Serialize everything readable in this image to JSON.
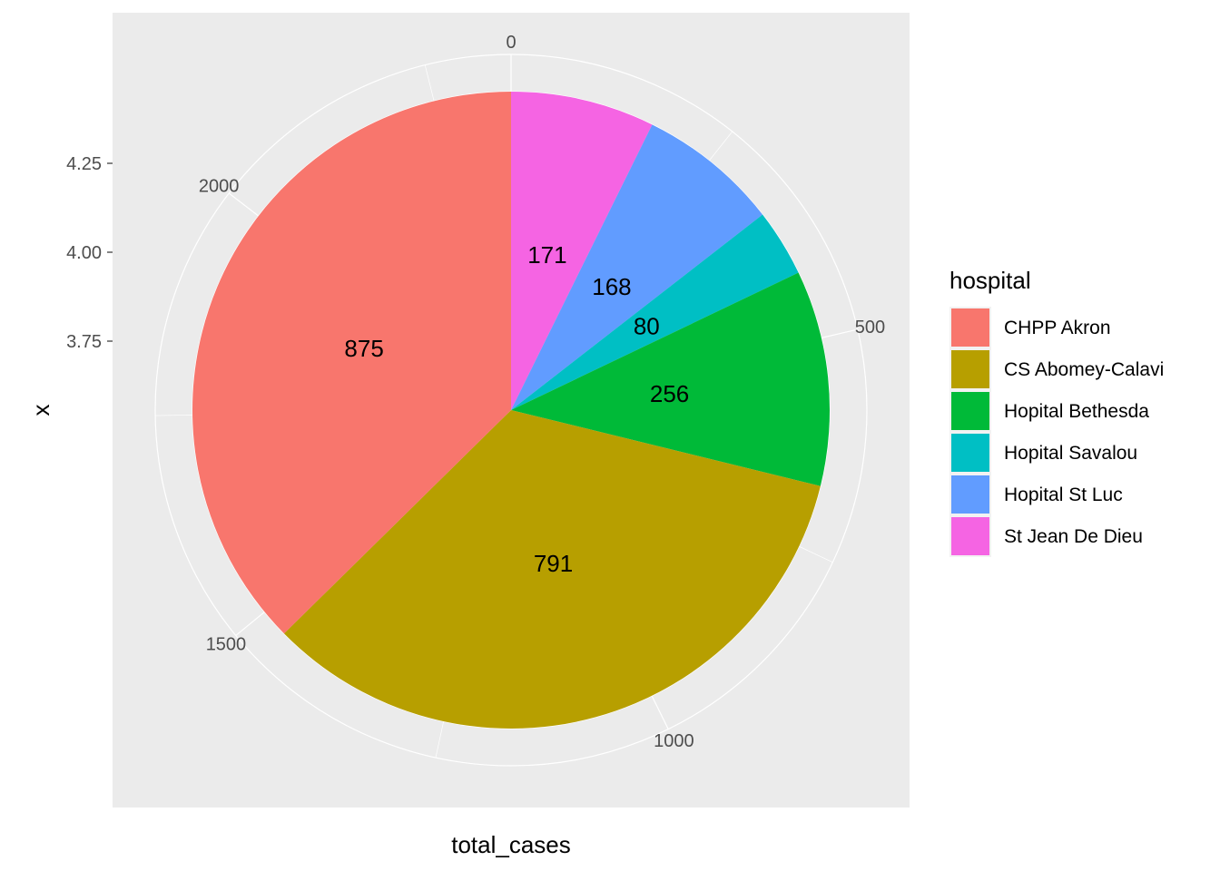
{
  "chart_data": {
    "type": "pie",
    "xlabel": "total_cases",
    "ylabel": "x",
    "y_ticks": [
      "3.75",
      "4.00",
      "4.25"
    ],
    "theta_ticks": [
      0,
      500,
      1000,
      1500,
      2000
    ],
    "legend": {
      "title": "hospital",
      "position": "right"
    },
    "slices": [
      {
        "label": "St Jean De Dieu",
        "value": 171,
        "color": "#F564E3"
      },
      {
        "label": "Hopital St Luc",
        "value": 168,
        "color": "#619CFF"
      },
      {
        "label": "Hopital Savalou",
        "value": 80,
        "color": "#00BFC4"
      },
      {
        "label": "Hopital Bethesda",
        "value": 256,
        "color": "#00BA38"
      },
      {
        "label": "CS Abomey-Calavi",
        "value": 791,
        "color": "#B79F00"
      },
      {
        "label": "CHPP Akron",
        "value": 875,
        "color": "#F8766D"
      }
    ],
    "legend_order": [
      "CHPP Akron",
      "CS Abomey-Calavi",
      "Hopital Bethesda",
      "Hopital Savalou",
      "Hopital St Luc",
      "St Jean De Dieu"
    ],
    "panel_background": "#EBEBEB",
    "grid": true
  }
}
